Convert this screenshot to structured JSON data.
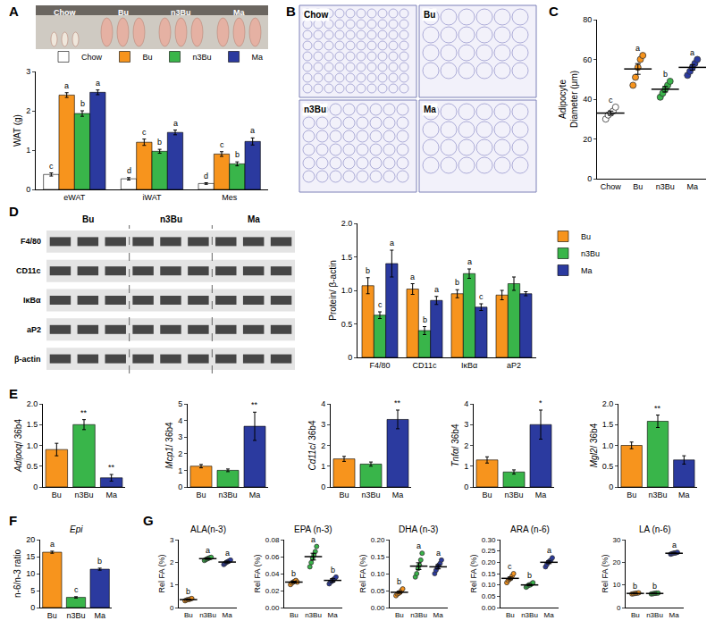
{
  "chart_data": [
    {
      "panel": "A",
      "type": "image",
      "labels": [
        "Chow",
        "Bu",
        "n3Bu",
        "Ma"
      ]
    },
    {
      "type": "bar",
      "y_label": "WAT (g)",
      "categories": [
        "eWAT",
        "iWAT",
        "Mes"
      ],
      "ylim": [
        0,
        3
      ],
      "yticks": [
        0,
        1,
        2,
        3
      ],
      "legend": "upper right",
      "series": [
        {
          "name": "Chow",
          "color": "#ffffff",
          "values": [
            0.38,
            0.27,
            0.15
          ],
          "errors": [
            0.04,
            0.03,
            0.02
          ],
          "letters": [
            "c",
            "d",
            "d"
          ]
        },
        {
          "name": "Bu",
          "color": "#f7941d",
          "values": [
            2.4,
            1.2,
            0.9
          ],
          "errors": [
            0.06,
            0.08,
            0.06
          ],
          "letters": [
            "a",
            "c",
            "c"
          ]
        },
        {
          "name": "n3Bu",
          "color": "#39b54a",
          "values": [
            1.93,
            0.97,
            0.65
          ],
          "errors": [
            0.07,
            0.05,
            0.05
          ],
          "letters": [
            "b",
            "b",
            "b"
          ]
        },
        {
          "name": "Ma",
          "color": "#2b3a9f",
          "values": [
            2.47,
            1.45,
            1.22
          ],
          "errors": [
            0.06,
            0.06,
            0.09
          ],
          "letters": [
            "a",
            "a",
            "a"
          ]
        }
      ]
    },
    {
      "panel": "B",
      "type": "image",
      "labels": [
        "Chow",
        "Bu",
        "n3Bu",
        "Ma"
      ]
    },
    {
      "panel": "C",
      "type": "scatter",
      "y_label": "Adipocyte\nDiameter (μm)",
      "categories": [
        "Chow",
        "Bu",
        "n3Bu",
        "Ma"
      ],
      "ylim": [
        0,
        80
      ],
      "yticks": [
        0,
        20,
        40,
        60,
        80
      ],
      "colors": [
        "#ffffff",
        "#f7941d",
        "#39b54a",
        "#2b3a9f"
      ],
      "points": [
        [
          30,
          32,
          33,
          34,
          36
        ],
        [
          47,
          51,
          56,
          60,
          62
        ],
        [
          41,
          43,
          45,
          47,
          49
        ],
        [
          52,
          54,
          56,
          58,
          60
        ]
      ],
      "means": [
        33,
        55.2,
        45,
        56
      ],
      "errors": [
        1.0,
        2.7,
        1.4,
        1.4
      ],
      "letters": [
        "c",
        "a",
        "b",
        "a"
      ]
    },
    {
      "panel": "D",
      "type": "blot",
      "groups": [
        "Bu",
        "n3Bu",
        "Ma"
      ],
      "rows": [
        "F4/80",
        "CD11c",
        "IκBα",
        "aP2",
        "β-actin"
      ]
    },
    {
      "type": "bar",
      "y_label": "Protein/ β-actin",
      "categories": [
        "F4/80",
        "CD11c",
        "IκBα",
        "aP2"
      ],
      "ylim": [
        0,
        2
      ],
      "yticks": [
        0,
        0.5,
        {
          "value": 1,
          "label": "1.0"
        },
        1.5,
        {
          "value": 2,
          "label": "2.0"
        }
      ],
      "legend": "right",
      "series": [
        {
          "name": "Bu",
          "color": "#f7941d",
          "values": [
            1.07,
            1.02,
            0.95,
            0.93
          ],
          "errors": [
            0.12,
            0.08,
            0.06,
            0.07
          ],
          "letters": [
            "b",
            "a",
            "b",
            null
          ]
        },
        {
          "name": "n3Bu",
          "color": "#39b54a",
          "values": [
            0.63,
            0.4,
            1.25,
            1.1
          ],
          "errors": [
            0.05,
            0.06,
            0.07,
            0.1
          ],
          "letters": [
            "c",
            "b",
            "a",
            null
          ]
        },
        {
          "name": "Ma",
          "color": "#2b3a9f",
          "values": [
            1.4,
            0.85,
            0.75,
            0.95
          ],
          "errors": [
            0.2,
            0.06,
            0.05,
            0.03
          ],
          "letters": [
            "a",
            "a",
            "c",
            null
          ]
        }
      ]
    },
    {
      "panel": "E",
      "type": "bar",
      "y_label": "Adipoq/ 36b4",
      "categories": [
        "Bu",
        "n3Bu",
        "Ma"
      ],
      "ylim": [
        0,
        2
      ],
      "yticks": [
        0,
        0.5,
        {
          "value": 1,
          "label": "1.0"
        },
        1.5,
        {
          "value": 2,
          "label": "2.0"
        }
      ],
      "colors": [
        "#f7941d",
        "#39b54a",
        "#2b3a9f"
      ],
      "values": [
        0.9,
        1.5,
        0.22
      ],
      "errors": [
        0.15,
        0.12,
        0.08
      ],
      "letters": [
        null,
        "**",
        "**"
      ]
    },
    {
      "type": "bar",
      "y_label": "Mcp1/ 36b4",
      "categories": [
        "Bu",
        "n3Bu",
        "Ma"
      ],
      "ylim": [
        0,
        5
      ],
      "yticks": [
        0,
        1,
        2,
        3,
        4,
        5
      ],
      "colors": [
        "#f7941d",
        "#39b54a",
        "#2b3a9f"
      ],
      "values": [
        1.25,
        1.0,
        3.65
      ],
      "errors": [
        0.1,
        0.08,
        0.85
      ],
      "letters": [
        null,
        null,
        "**"
      ]
    },
    {
      "type": "bar",
      "y_label": "Cd11c/ 36b4",
      "categories": [
        "Bu",
        "n3Bu",
        "Ma"
      ],
      "ylim": [
        0,
        4
      ],
      "yticks": [
        0,
        1,
        2,
        3,
        4
      ],
      "colors": [
        "#f7941d",
        "#39b54a",
        "#2b3a9f"
      ],
      "values": [
        1.35,
        1.1,
        3.25
      ],
      "errors": [
        0.12,
        0.1,
        0.45
      ],
      "letters": [
        null,
        null,
        "**"
      ]
    },
    {
      "type": "bar",
      "y_label": "Tnfα/ 36b4",
      "categories": [
        "Bu",
        "n3Bu",
        "Ma"
      ],
      "ylim": [
        0,
        4
      ],
      "yticks": [
        0,
        1,
        2,
        3,
        4
      ],
      "colors": [
        "#f7941d",
        "#39b54a",
        "#2b3a9f"
      ],
      "values": [
        1.3,
        0.72,
        3.0
      ],
      "errors": [
        0.15,
        0.1,
        0.7
      ],
      "letters": [
        null,
        null,
        "*"
      ]
    },
    {
      "type": "bar",
      "y_label": "Mgl2/ 36b4",
      "categories": [
        "Bu",
        "n3Bu",
        "Ma"
      ],
      "ylim": [
        0,
        2
      ],
      "yticks": [
        0,
        0.5,
        {
          "value": 1,
          "label": "1.0"
        },
        1.5,
        {
          "value": 2,
          "label": "2.0"
        }
      ],
      "colors": [
        "#f7941d",
        "#39b54a",
        "#2b3a9f"
      ],
      "values": [
        1.0,
        1.58,
        0.65
      ],
      "errors": [
        0.08,
        0.15,
        0.1
      ],
      "letters": [
        null,
        "**",
        null
      ]
    },
    {
      "panel": "F",
      "type": "bar",
      "title": "Epi",
      "y_label": "n-6/n-3 ratio",
      "categories": [
        "Bu",
        "n3Bu",
        "Ma"
      ],
      "ylim": [
        0,
        20
      ],
      "yticks": [
        0,
        5,
        10,
        15,
        20
      ],
      "colors": [
        "#f7941d",
        "#39b54a",
        "#2b3a9f"
      ],
      "values": [
        16.3,
        3.0,
        11.3
      ],
      "errors": [
        0.3,
        0.2,
        0.3
      ],
      "letters": [
        "a",
        "c",
        "b"
      ]
    },
    {
      "panel": "G",
      "type": "scatter",
      "title": "ALA(n-3)",
      "y_label": "Rel FA (%)",
      "categories": [
        "Bu",
        "n3Bu",
        "Ma"
      ],
      "ylim": [
        0,
        3
      ],
      "yticks": [
        0,
        1,
        2,
        3
      ],
      "colors": [
        "#f7941d",
        "#39b54a",
        "#2b3a9f"
      ],
      "points": [
        [
          0.3,
          0.33,
          0.35,
          0.36,
          0.38,
          0.4
        ],
        [
          2.08,
          2.12,
          2.15,
          2.18,
          2.2,
          2.22
        ],
        [
          1.9,
          1.95,
          2.0,
          2.03,
          2.06,
          2.1
        ]
      ],
      "means": [
        0.35,
        2.16,
        2.01
      ],
      "errors": [
        0.02,
        0.03,
        0.04
      ],
      "letters": [
        "b",
        "a",
        "a"
      ]
    },
    {
      "type": "scatter",
      "title": "EPA (n-3)",
      "y_label": "Rel FA (%)",
      "categories": [
        "Bu",
        "n3Bu",
        "Ma"
      ],
      "ylim": [
        0,
        0.08
      ],
      "yticks": [
        {
          "value": 0,
          "label": "0.00"
        },
        {
          "value": 0.02,
          "label": "0.02"
        },
        {
          "value": 0.04,
          "label": "0.04"
        },
        {
          "value": 0.06,
          "label": "0.06"
        },
        {
          "value": 0.08,
          "label": "0.08"
        }
      ],
      "colors": [
        "#f7941d",
        "#39b54a",
        "#2b3a9f"
      ],
      "points": [
        [
          0.027,
          0.029,
          0.03,
          0.031,
          0.032,
          0.03
        ],
        [
          0.048,
          0.053,
          0.058,
          0.062,
          0.066,
          0.072
        ],
        [
          0.028,
          0.03,
          0.031,
          0.033,
          0.034,
          0.036
        ]
      ],
      "means": [
        0.03,
        0.06,
        0.032
      ],
      "errors": [
        0.001,
        0.004,
        0.002
      ],
      "letters": [
        "b",
        "a",
        "b"
      ]
    },
    {
      "type": "scatter",
      "title": "DHA (n-3)",
      "y_label": "Rel FA (%)",
      "categories": [
        "Bu",
        "n3Bu",
        "Ma"
      ],
      "ylim": [
        0,
        0.2
      ],
      "yticks": [
        {
          "value": 0,
          "label": "0.00"
        },
        {
          "value": 0.05,
          "label": "0.05"
        },
        {
          "value": 0.1,
          "label": "0.10"
        },
        {
          "value": 0.15,
          "label": "0.15"
        },
        {
          "value": 0.2,
          "label": "0.20"
        }
      ],
      "colors": [
        "#f7941d",
        "#39b54a",
        "#2b3a9f"
      ],
      "points": [
        [
          0.035,
          0.04,
          0.042,
          0.045,
          0.05,
          0.055
        ],
        [
          0.09,
          0.1,
          0.115,
          0.125,
          0.14,
          0.16
        ],
        [
          0.1,
          0.11,
          0.118,
          0.125,
          0.13,
          0.14
        ]
      ],
      "means": [
        0.045,
        0.122,
        0.12
      ],
      "errors": [
        0.003,
        0.01,
        0.006
      ],
      "letters": [
        "b",
        "a",
        "a"
      ]
    },
    {
      "type": "scatter",
      "title": "ARA (n-6)",
      "y_label": "Rel FA (%)",
      "categories": [
        "Bu",
        "n3Bu",
        "Ma"
      ],
      "ylim": [
        0,
        0.3
      ],
      "yticks": [
        {
          "value": 0,
          "label": "0.00"
        },
        0.05,
        {
          "value": 0.1,
          "label": "0.10"
        },
        0.15,
        {
          "value": 0.2,
          "label": "0.20"
        },
        0.25,
        {
          "value": 0.3,
          "label": "0.30"
        }
      ],
      "colors": [
        "#f7941d",
        "#39b54a",
        "#2b3a9f"
      ],
      "points": [
        [
          0.11,
          0.12,
          0.125,
          0.13,
          0.14,
          0.15
        ],
        [
          0.09,
          0.095,
          0.1,
          0.1,
          0.105,
          0.11
        ],
        [
          0.18,
          0.19,
          0.2,
          0.205,
          0.21,
          0.22
        ]
      ],
      "means": [
        0.129,
        0.1,
        0.2
      ],
      "errors": [
        0.006,
        0.003,
        0.006
      ],
      "letters": [
        "c",
        "b",
        "a"
      ]
    },
    {
      "type": "scatter",
      "title": "LA (n-6)",
      "y_label": "Rel FA (%)",
      "categories": [
        "Bu",
        "n3Bu",
        "Ma"
      ],
      "ylim": [
        0,
        30
      ],
      "yticks": [
        0,
        10,
        20,
        30
      ],
      "colors": [
        "#f7941d",
        "#39b54a",
        "#2b3a9f"
      ],
      "points": [
        [
          6.0,
          6.1,
          6.2,
          6.3,
          6.4,
          6.5
        ],
        [
          6.0,
          6.1,
          6.2,
          6.3,
          6.4,
          6.4
        ],
        [
          23.6,
          23.8,
          24.0,
          24.1,
          24.2,
          24.4
        ]
      ],
      "means": [
        6.25,
        6.23,
        24.0
      ],
      "errors": [
        0.08,
        0.07,
        0.12
      ],
      "letters": [
        "b",
        "b",
        "a"
      ]
    }
  ]
}
